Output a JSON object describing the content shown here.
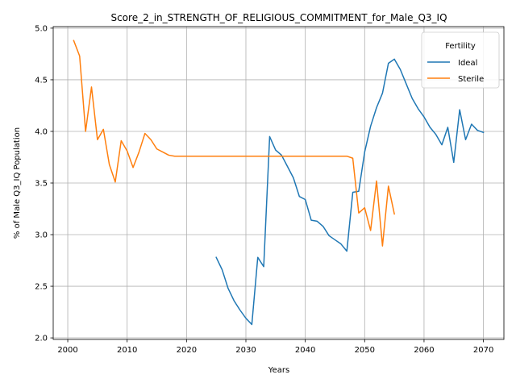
{
  "chart_data": {
    "type": "line",
    "title": "Score_2_in_STRENGTH_OF_RELIGIOUS_COMMITMENT_for_Male_Q3_IQ",
    "xlabel": "Years",
    "ylabel": "% of Male Q3_IQ Population",
    "xlim": [
      1997.55,
      2073.45
    ],
    "ylim": [
      1.985,
      5.015
    ],
    "xticks": [
      2000,
      2010,
      2020,
      2030,
      2040,
      2050,
      2060,
      2070
    ],
    "yticks": [
      2.0,
      2.5,
      3.0,
      3.5,
      4.0,
      4.5,
      5.0
    ],
    "xtick_labels": [
      "2000",
      "2010",
      "2020",
      "2030",
      "2040",
      "2050",
      "2060",
      "2070"
    ],
    "ytick_labels": [
      "2.0",
      "2.5",
      "3.0",
      "3.5",
      "4.0",
      "4.5",
      "5.0"
    ],
    "grid": true,
    "legend": {
      "title": "Fertility",
      "placement": "top-right"
    },
    "series": [
      {
        "name": "Ideal",
        "color": "#1f77b4",
        "x": [
          2025,
          2026,
          2027,
          2028,
          2029,
          2030,
          2031,
          2032,
          2033,
          2034,
          2035,
          2036,
          2037,
          2038,
          2039,
          2040,
          2041,
          2042,
          2043,
          2044,
          2045,
          2046,
          2047,
          2048,
          2049,
          2050,
          2051,
          2052,
          2053,
          2054,
          2055,
          2056,
          2057,
          2058,
          2059,
          2060,
          2061,
          2062,
          2063,
          2064,
          2065,
          2066,
          2067,
          2068,
          2069,
          2070
        ],
        "values": [
          2.78,
          2.66,
          2.48,
          2.36,
          2.27,
          2.19,
          2.13,
          2.78,
          2.69,
          3.95,
          3.82,
          3.77,
          3.66,
          3.55,
          3.37,
          3.34,
          3.14,
          3.13,
          3.08,
          2.99,
          2.95,
          2.91,
          2.84,
          3.41,
          3.42,
          3.8,
          4.05,
          4.23,
          4.37,
          4.66,
          4.7,
          4.6,
          4.46,
          4.32,
          4.22,
          4.14,
          4.04,
          3.97,
          3.87,
          4.04,
          3.7,
          4.21,
          3.92,
          4.07,
          4.01,
          3.99
        ]
      },
      {
        "name": "Sterile",
        "color": "#ff7f0e",
        "x": [
          2001,
          2002,
          2003,
          2004,
          2005,
          2006,
          2007,
          2008,
          2009,
          2010,
          2011,
          2012,
          2013,
          2014,
          2015,
          2016,
          2017,
          2018,
          2019,
          2020,
          2021,
          2022,
          2023,
          2024,
          2025,
          2026,
          2027,
          2028,
          2029,
          2030,
          2031,
          2032,
          2033,
          2034,
          2035,
          2036,
          2037,
          2038,
          2039,
          2040,
          2041,
          2042,
          2043,
          2044,
          2045,
          2046,
          2047,
          2048,
          2049,
          2050,
          2051,
          2052,
          2053,
          2054,
          2055
        ],
        "values": [
          4.88,
          4.73,
          4.0,
          4.43,
          3.92,
          4.02,
          3.68,
          3.51,
          3.91,
          3.81,
          3.65,
          3.8,
          3.98,
          3.92,
          3.83,
          3.8,
          3.77,
          3.76,
          3.76,
          3.76,
          3.76,
          3.76,
          3.76,
          3.76,
          3.76,
          3.76,
          3.76,
          3.76,
          3.76,
          3.76,
          3.76,
          3.76,
          3.76,
          3.76,
          3.76,
          3.76,
          3.76,
          3.76,
          3.76,
          3.76,
          3.76,
          3.76,
          3.76,
          3.76,
          3.76,
          3.76,
          3.76,
          3.74,
          3.21,
          3.26,
          3.04,
          3.52,
          2.89,
          3.47,
          3.2
        ]
      }
    ]
  }
}
